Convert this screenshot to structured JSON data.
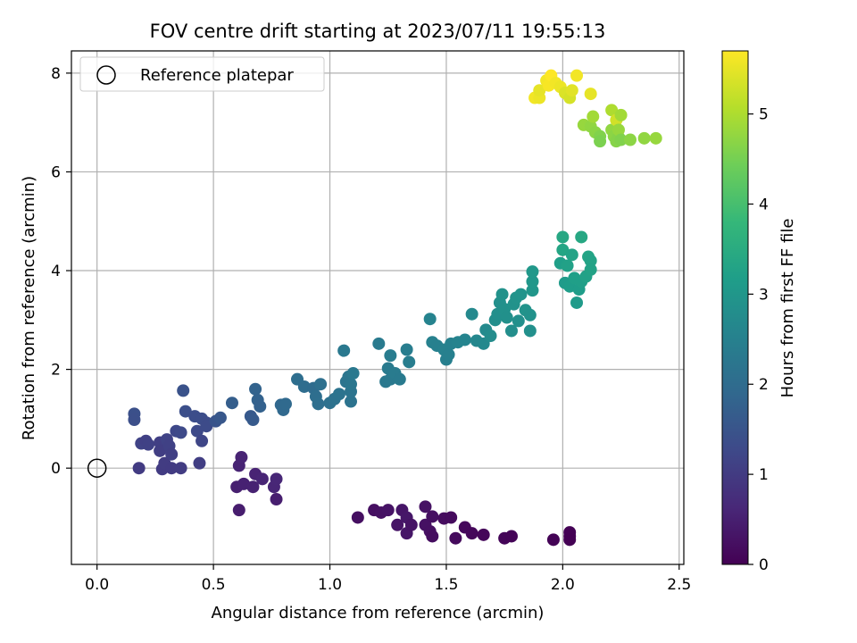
{
  "chart_data": {
    "type": "scatter",
    "title": "FOV centre drift starting at 2023/07/11 19:55:13",
    "xlabel": "Angular distance from reference (arcmin)",
    "ylabel": "Rotation from reference (arcmin)",
    "colorbar_label": "Hours from first FF file",
    "xlim": [
      -0.11,
      2.52
    ],
    "ylim": [
      -1.95,
      8.45
    ],
    "clim": [
      0,
      5.7
    ],
    "xticks": [
      "0.0",
      "0.5",
      "1.0",
      "1.5",
      "2.0",
      "2.5"
    ],
    "yticks": [
      "0",
      "2",
      "4",
      "6",
      "8"
    ],
    "cticks": [
      "0",
      "1",
      "2",
      "3",
      "4",
      "5"
    ],
    "grid": true,
    "colormap": "viridis",
    "legend": {
      "location": "upper left",
      "entries": [
        "Reference platepar"
      ]
    },
    "reference_point": {
      "x": 0.0,
      "y": 0.0
    },
    "points": [
      {
        "x": 1.12,
        "y": -1.0,
        "c": 0.22
      },
      {
        "x": 1.19,
        "y": -0.85,
        "c": 0.25
      },
      {
        "x": 1.22,
        "y": -0.9,
        "c": 0.27
      },
      {
        "x": 1.25,
        "y": -0.85,
        "c": 0.3
      },
      {
        "x": 1.29,
        "y": -1.15,
        "c": 0.31
      },
      {
        "x": 1.31,
        "y": -0.85,
        "c": 0.33
      },
      {
        "x": 1.33,
        "y": -1.0,
        "c": 0.36
      },
      {
        "x": 1.33,
        "y": -1.32,
        "c": 0.34
      },
      {
        "x": 1.35,
        "y": -1.15,
        "c": 0.3
      },
      {
        "x": 1.41,
        "y": -0.78,
        "c": 0.28
      },
      {
        "x": 1.41,
        "y": -1.15,
        "c": 0.26
      },
      {
        "x": 1.43,
        "y": -1.28,
        "c": 0.24
      },
      {
        "x": 1.44,
        "y": -0.98,
        "c": 0.22
      },
      {
        "x": 1.44,
        "y": -1.38,
        "c": 0.2
      },
      {
        "x": 1.49,
        "y": -1.02,
        "c": 0.18
      },
      {
        "x": 1.52,
        "y": -1.0,
        "c": 0.16
      },
      {
        "x": 1.54,
        "y": -1.42,
        "c": 0.14
      },
      {
        "x": 1.58,
        "y": -1.2,
        "c": 0.12
      },
      {
        "x": 1.61,
        "y": -1.32,
        "c": 0.1
      },
      {
        "x": 1.66,
        "y": -1.35,
        "c": 0.08
      },
      {
        "x": 1.75,
        "y": -1.42,
        "c": 0.07
      },
      {
        "x": 1.78,
        "y": -1.38,
        "c": 0.05
      },
      {
        "x": 1.96,
        "y": -1.45,
        "c": 0.04
      },
      {
        "x": 2.03,
        "y": -1.3,
        "c": 0.02
      },
      {
        "x": 2.03,
        "y": -1.38,
        "c": 0.01
      },
      {
        "x": 2.03,
        "y": -1.45,
        "c": 0.0
      },
      {
        "x": 0.6,
        "y": -0.38,
        "c": 0.5
      },
      {
        "x": 0.61,
        "y": 0.05,
        "c": 0.55
      },
      {
        "x": 0.62,
        "y": 0.22,
        "c": 0.57
      },
      {
        "x": 0.61,
        "y": -0.85,
        "c": 0.45
      },
      {
        "x": 0.63,
        "y": -0.32,
        "c": 0.52
      },
      {
        "x": 0.67,
        "y": -0.38,
        "c": 0.53
      },
      {
        "x": 0.68,
        "y": -0.12,
        "c": 0.56
      },
      {
        "x": 0.71,
        "y": -0.22,
        "c": 0.58
      },
      {
        "x": 0.76,
        "y": -0.38,
        "c": 0.6
      },
      {
        "x": 0.77,
        "y": -0.22,
        "c": 0.62
      },
      {
        "x": 0.77,
        "y": -0.63,
        "c": 0.47
      },
      {
        "x": 0.18,
        "y": 0.0,
        "c": 1.0
      },
      {
        "x": 0.19,
        "y": 0.5,
        "c": 1.15
      },
      {
        "x": 0.21,
        "y": 0.55,
        "c": 1.1
      },
      {
        "x": 0.22,
        "y": 0.48,
        "c": 1.12
      },
      {
        "x": 0.27,
        "y": 0.52,
        "c": 1.08
      },
      {
        "x": 0.27,
        "y": 0.35,
        "c": 1.05
      },
      {
        "x": 0.28,
        "y": -0.02,
        "c": 1.0
      },
      {
        "x": 0.29,
        "y": 0.1,
        "c": 1.02
      },
      {
        "x": 0.3,
        "y": 0.58,
        "c": 1.15
      },
      {
        "x": 0.31,
        "y": 0.45,
        "c": 1.12
      },
      {
        "x": 0.32,
        "y": 0.28,
        "c": 1.08
      },
      {
        "x": 0.32,
        "y": 0.0,
        "c": 1.0
      },
      {
        "x": 0.34,
        "y": 0.75,
        "c": 1.25
      },
      {
        "x": 0.36,
        "y": 0.72,
        "c": 1.28
      },
      {
        "x": 0.36,
        "y": 0.0,
        "c": 1.02
      },
      {
        "x": 0.37,
        "y": 1.57,
        "c": 1.45
      },
      {
        "x": 0.38,
        "y": 1.15,
        "c": 1.38
      },
      {
        "x": 0.42,
        "y": 1.05,
        "c": 1.35
      },
      {
        "x": 0.43,
        "y": 0.75,
        "c": 1.28
      },
      {
        "x": 0.44,
        "y": 0.1,
        "c": 1.05
      },
      {
        "x": 0.45,
        "y": 0.55,
        "c": 1.2
      },
      {
        "x": 0.45,
        "y": 1.0,
        "c": 1.35
      },
      {
        "x": 0.47,
        "y": 0.92,
        "c": 1.32
      },
      {
        "x": 0.47,
        "y": 0.85,
        "c": 1.3
      },
      {
        "x": 0.16,
        "y": 1.1,
        "c": 1.4
      },
      {
        "x": 0.16,
        "y": 0.98,
        "c": 1.38
      },
      {
        "x": 0.51,
        "y": 0.95,
        "c": 1.5
      },
      {
        "x": 0.53,
        "y": 1.02,
        "c": 1.55
      },
      {
        "x": 0.58,
        "y": 1.32,
        "c": 1.7
      },
      {
        "x": 0.66,
        "y": 1.05,
        "c": 1.6
      },
      {
        "x": 0.67,
        "y": 0.98,
        "c": 1.62
      },
      {
        "x": 0.68,
        "y": 1.6,
        "c": 1.8
      },
      {
        "x": 0.69,
        "y": 1.38,
        "c": 1.78
      },
      {
        "x": 0.7,
        "y": 1.25,
        "c": 1.75
      },
      {
        "x": 0.79,
        "y": 1.28,
        "c": 1.9
      },
      {
        "x": 0.8,
        "y": 1.18,
        "c": 1.92
      },
      {
        "x": 0.81,
        "y": 1.3,
        "c": 1.95
      },
      {
        "x": 0.86,
        "y": 1.8,
        "c": 2.05
      },
      {
        "x": 0.89,
        "y": 1.65,
        "c": 2.02
      },
      {
        "x": 0.93,
        "y": 1.62,
        "c": 2.0
      },
      {
        "x": 0.94,
        "y": 1.45,
        "c": 2.05
      },
      {
        "x": 0.95,
        "y": 1.3,
        "c": 2.08
      },
      {
        "x": 0.96,
        "y": 1.7,
        "c": 2.1
      },
      {
        "x": 1.0,
        "y": 1.32,
        "c": 2.12
      },
      {
        "x": 1.02,
        "y": 1.4,
        "c": 2.15
      },
      {
        "x": 1.04,
        "y": 1.5,
        "c": 2.18
      },
      {
        "x": 1.06,
        "y": 2.38,
        "c": 2.3
      },
      {
        "x": 1.07,
        "y": 1.75,
        "c": 2.2
      },
      {
        "x": 1.08,
        "y": 1.85,
        "c": 2.22
      },
      {
        "x": 1.09,
        "y": 1.35,
        "c": 2.18
      },
      {
        "x": 1.09,
        "y": 1.55,
        "c": 2.2
      },
      {
        "x": 1.09,
        "y": 1.7,
        "c": 2.25
      },
      {
        "x": 1.1,
        "y": 1.92,
        "c": 2.28
      },
      {
        "x": 1.21,
        "y": 2.52,
        "c": 2.35
      },
      {
        "x": 1.24,
        "y": 1.75,
        "c": 2.3
      },
      {
        "x": 1.25,
        "y": 2.02,
        "c": 2.35
      },
      {
        "x": 1.26,
        "y": 2.28,
        "c": 2.38
      },
      {
        "x": 1.26,
        "y": 1.8,
        "c": 2.32
      },
      {
        "x": 1.28,
        "y": 1.92,
        "c": 2.36
      },
      {
        "x": 1.3,
        "y": 1.8,
        "c": 2.34
      },
      {
        "x": 1.33,
        "y": 2.4,
        "c": 2.42
      },
      {
        "x": 1.34,
        "y": 2.15,
        "c": 2.4
      },
      {
        "x": 1.43,
        "y": 3.02,
        "c": 2.55
      },
      {
        "x": 1.44,
        "y": 2.55,
        "c": 2.5
      },
      {
        "x": 1.46,
        "y": 2.48,
        "c": 2.48
      },
      {
        "x": 1.49,
        "y": 2.4,
        "c": 2.5
      },
      {
        "x": 1.5,
        "y": 2.2,
        "c": 2.45
      },
      {
        "x": 1.51,
        "y": 2.3,
        "c": 2.48
      },
      {
        "x": 1.52,
        "y": 2.52,
        "c": 2.52
      },
      {
        "x": 1.55,
        "y": 2.55,
        "c": 2.55
      },
      {
        "x": 1.58,
        "y": 2.6,
        "c": 2.58
      },
      {
        "x": 1.61,
        "y": 3.12,
        "c": 2.7
      },
      {
        "x": 1.63,
        "y": 2.58,
        "c": 2.65
      },
      {
        "x": 1.66,
        "y": 2.52,
        "c": 2.68
      },
      {
        "x": 1.67,
        "y": 2.8,
        "c": 2.72
      },
      {
        "x": 1.69,
        "y": 2.68,
        "c": 2.75
      },
      {
        "x": 1.71,
        "y": 3.0,
        "c": 2.8
      },
      {
        "x": 1.72,
        "y": 3.12,
        "c": 2.82
      },
      {
        "x": 1.73,
        "y": 3.35,
        "c": 2.85
      },
      {
        "x": 1.74,
        "y": 3.52,
        "c": 2.9
      },
      {
        "x": 1.75,
        "y": 3.22,
        "c": 2.88
      },
      {
        "x": 1.76,
        "y": 3.05,
        "c": 2.86
      },
      {
        "x": 1.78,
        "y": 2.78,
        "c": 2.8
      },
      {
        "x": 1.79,
        "y": 3.32,
        "c": 2.9
      },
      {
        "x": 1.8,
        "y": 3.45,
        "c": 2.92
      },
      {
        "x": 1.81,
        "y": 2.98,
        "c": 2.85
      },
      {
        "x": 1.82,
        "y": 3.52,
        "c": 2.95
      },
      {
        "x": 1.84,
        "y": 3.2,
        "c": 2.92
      },
      {
        "x": 1.86,
        "y": 3.1,
        "c": 2.9
      },
      {
        "x": 1.86,
        "y": 2.78,
        "c": 2.85
      },
      {
        "x": 1.87,
        "y": 3.6,
        "c": 2.98
      },
      {
        "x": 1.87,
        "y": 3.78,
        "c": 3.0
      },
      {
        "x": 1.87,
        "y": 3.98,
        "c": 3.02
      },
      {
        "x": 1.99,
        "y": 4.15,
        "c": 3.2
      },
      {
        "x": 2.0,
        "y": 4.68,
        "c": 3.4
      },
      {
        "x": 2.0,
        "y": 4.42,
        "c": 3.35
      },
      {
        "x": 2.01,
        "y": 3.75,
        "c": 3.1
      },
      {
        "x": 2.02,
        "y": 4.1,
        "c": 3.25
      },
      {
        "x": 2.03,
        "y": 3.68,
        "c": 3.15
      },
      {
        "x": 2.04,
        "y": 4.32,
        "c": 3.3
      },
      {
        "x": 2.05,
        "y": 3.85,
        "c": 3.2
      },
      {
        "x": 2.06,
        "y": 3.35,
        "c": 3.1
      },
      {
        "x": 2.07,
        "y": 3.62,
        "c": 3.15
      },
      {
        "x": 2.08,
        "y": 4.68,
        "c": 3.4
      },
      {
        "x": 2.08,
        "y": 3.78,
        "c": 3.2
      },
      {
        "x": 2.1,
        "y": 3.88,
        "c": 3.25
      },
      {
        "x": 2.11,
        "y": 4.28,
        "c": 3.32
      },
      {
        "x": 2.12,
        "y": 4.2,
        "c": 3.3
      },
      {
        "x": 2.12,
        "y": 4.02,
        "c": 3.28
      },
      {
        "x": 2.09,
        "y": 6.95,
        "c": 4.8
      },
      {
        "x": 2.12,
        "y": 6.92,
        "c": 4.75
      },
      {
        "x": 2.13,
        "y": 7.12,
        "c": 4.9
      },
      {
        "x": 2.14,
        "y": 6.8,
        "c": 4.7
      },
      {
        "x": 2.16,
        "y": 6.72,
        "c": 4.6
      },
      {
        "x": 2.16,
        "y": 6.62,
        "c": 4.55
      },
      {
        "x": 2.21,
        "y": 7.25,
        "c": 5.0
      },
      {
        "x": 2.21,
        "y": 6.85,
        "c": 4.75
      },
      {
        "x": 2.22,
        "y": 6.72,
        "c": 4.7
      },
      {
        "x": 2.23,
        "y": 6.62,
        "c": 4.65
      },
      {
        "x": 2.23,
        "y": 7.05,
        "c": 5.3
      },
      {
        "x": 2.24,
        "y": 6.7,
        "c": 4.65
      },
      {
        "x": 2.24,
        "y": 6.85,
        "c": 4.8
      },
      {
        "x": 2.25,
        "y": 7.15,
        "c": 4.9
      },
      {
        "x": 2.25,
        "y": 6.65,
        "c": 4.6
      },
      {
        "x": 2.29,
        "y": 6.65,
        "c": 4.7
      },
      {
        "x": 2.35,
        "y": 6.68,
        "c": 4.75
      },
      {
        "x": 2.4,
        "y": 6.68,
        "c": 4.8
      },
      {
        "x": 1.88,
        "y": 7.5,
        "c": 5.6
      },
      {
        "x": 1.9,
        "y": 7.5,
        "c": 5.55
      },
      {
        "x": 1.9,
        "y": 7.65,
        "c": 5.5
      },
      {
        "x": 1.93,
        "y": 7.85,
        "c": 5.6
      },
      {
        "x": 1.94,
        "y": 7.75,
        "c": 5.65
      },
      {
        "x": 1.95,
        "y": 7.95,
        "c": 5.7
      },
      {
        "x": 1.97,
        "y": 7.8,
        "c": 5.6
      },
      {
        "x": 1.99,
        "y": 7.72,
        "c": 5.55
      },
      {
        "x": 2.01,
        "y": 7.6,
        "c": 5.4
      },
      {
        "x": 2.03,
        "y": 7.5,
        "c": 5.35
      },
      {
        "x": 2.04,
        "y": 7.65,
        "c": 5.45
      },
      {
        "x": 2.06,
        "y": 7.95,
        "c": 5.6
      },
      {
        "x": 2.12,
        "y": 7.58,
        "c": 5.5
      }
    ]
  }
}
